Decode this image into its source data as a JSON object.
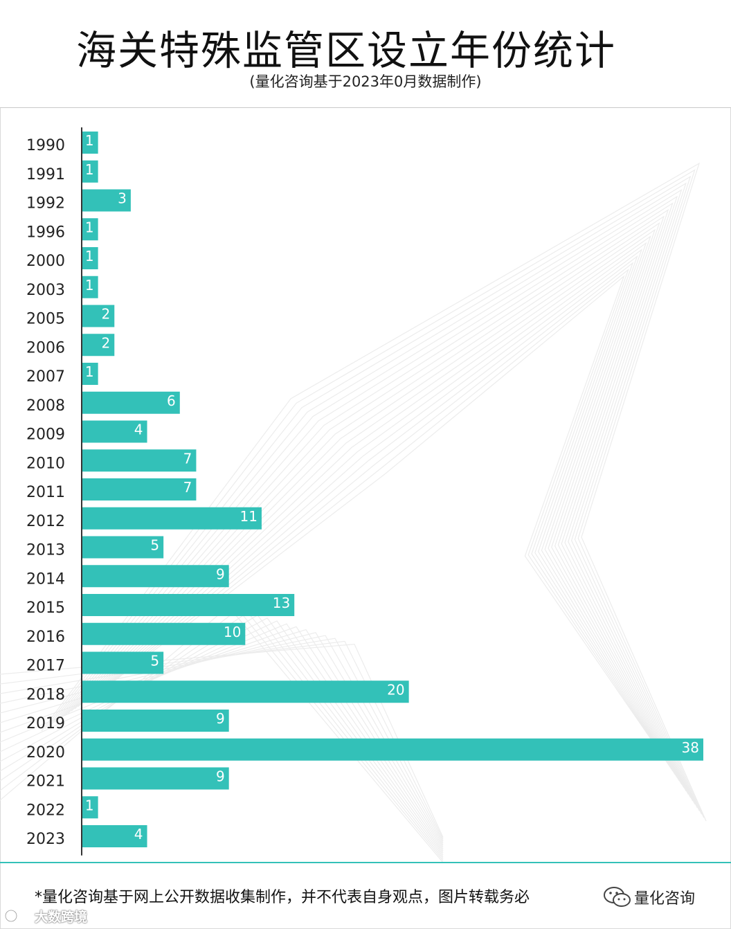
{
  "header": {
    "title": "海关特殊监管区设立年份统计",
    "subtitle": "(量化咨询基于2023年0月数据制作)"
  },
  "footer": {
    "note": "*量化咨询基于网上公开数据收集制作，并不代表自身观点，图片转载务必",
    "brand": "量化咨询",
    "source_watermark": "大数跨境"
  },
  "colors": {
    "bar": "#33c1b8",
    "axis": "#333333",
    "label": "#ffffff",
    "tick": "#222222"
  },
  "chart_data": {
    "type": "bar",
    "orientation": "horizontal",
    "categories": [
      "1990",
      "1991",
      "1992",
      "1996",
      "2000",
      "2003",
      "2005",
      "2006",
      "2007",
      "2008",
      "2009",
      "2010",
      "2011",
      "2012",
      "2013",
      "2014",
      "2015",
      "2016",
      "2017",
      "2018",
      "2019",
      "2020",
      "2021",
      "2022",
      "2023"
    ],
    "values": [
      1,
      1,
      3,
      1,
      1,
      1,
      2,
      2,
      1,
      6,
      4,
      7,
      7,
      11,
      5,
      9,
      13,
      10,
      5,
      20,
      9,
      38,
      9,
      1,
      4
    ],
    "title": "海关特殊监管区设立年份统计",
    "xlabel": "",
    "ylabel": "",
    "xlim": [
      0,
      38
    ],
    "data_labels": true,
    "grid": false,
    "legend": "none"
  }
}
